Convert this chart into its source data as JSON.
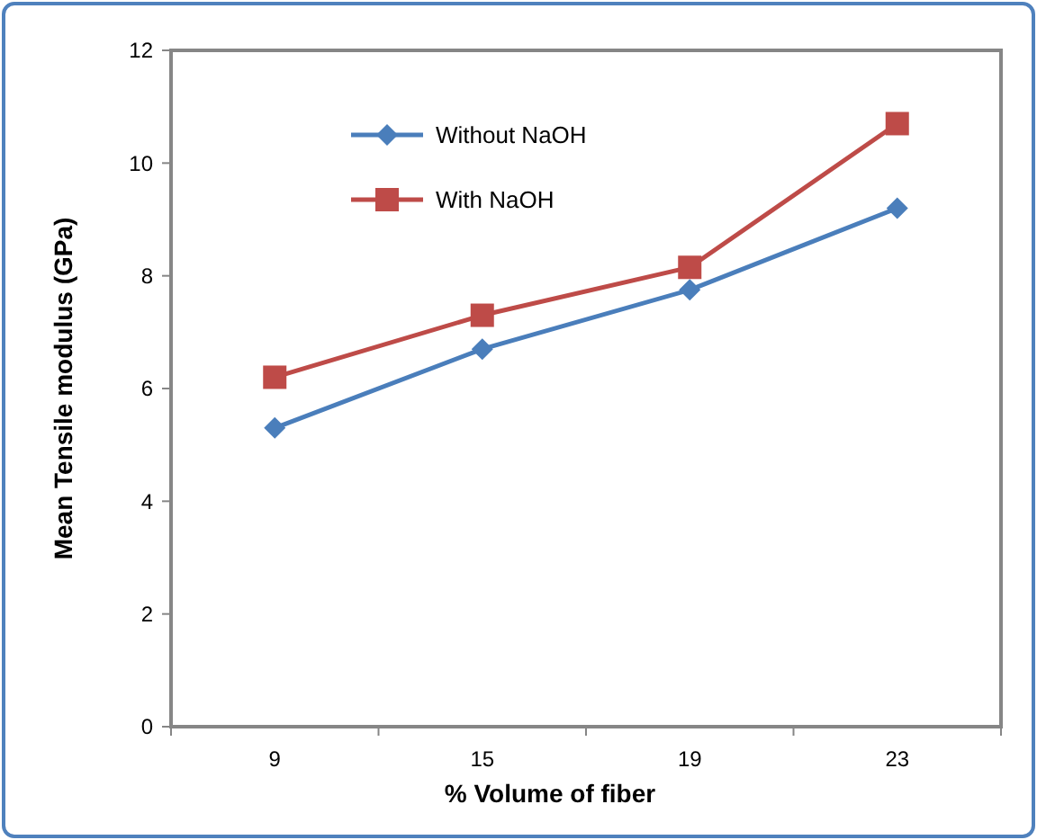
{
  "chart_data": {
    "type": "line",
    "xlabel": "% Volume of  fiber",
    "ylabel": "Mean Tensile modulus (GPa)",
    "categories": [
      "9",
      "15",
      "19",
      "23"
    ],
    "series": [
      {
        "name": "Without NaOH",
        "color": "#4a7ebb",
        "marker": "diamond",
        "values": [
          5.3,
          6.7,
          7.75,
          9.2
        ]
      },
      {
        "name": "With NaOH",
        "color": "#be4b48",
        "marker": "square",
        "values": [
          6.2,
          7.3,
          8.15,
          10.7
        ]
      }
    ],
    "ylim": [
      0,
      12
    ],
    "yticks": [
      0,
      2,
      4,
      6,
      8,
      10,
      12
    ],
    "grid": false,
    "legend": "top left",
    "line_style": "solid"
  }
}
